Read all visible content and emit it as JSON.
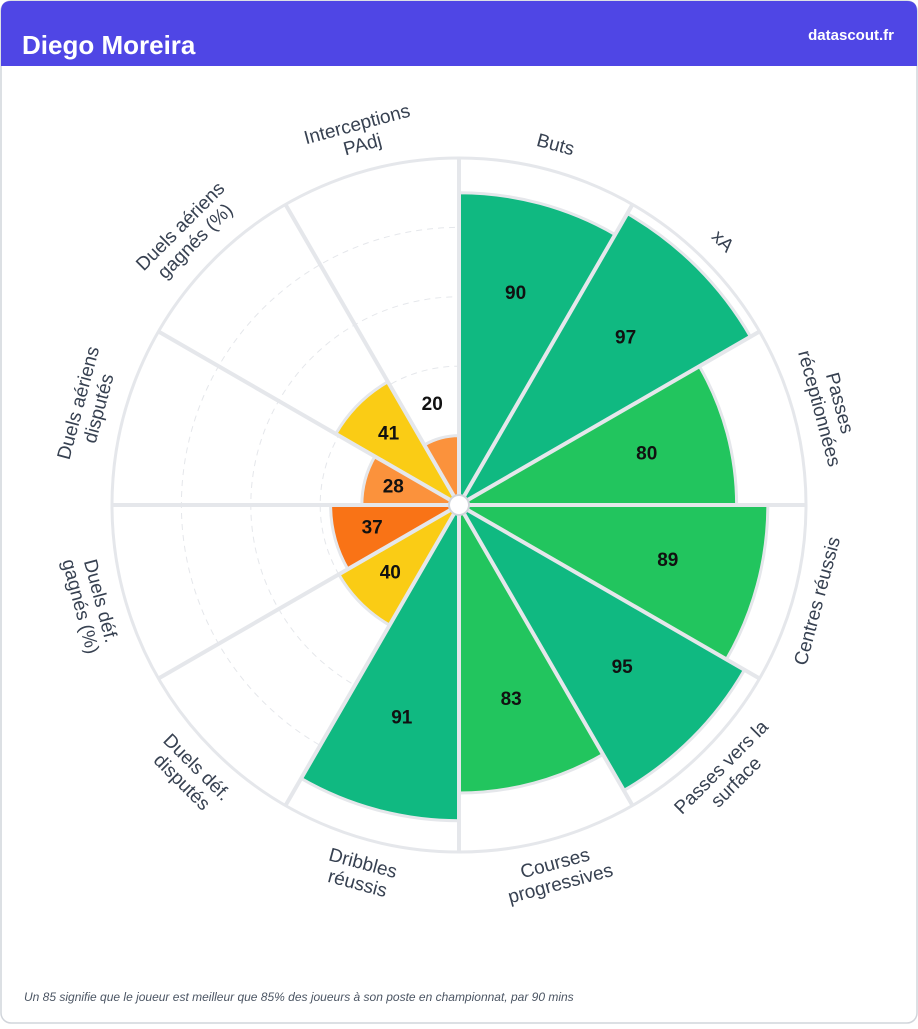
{
  "chart_data": {
    "type": "pizza",
    "title": "Diego Moreira",
    "source": "datascout.fr",
    "footnote": "Un 85 signifie que le joueur est meilleur que 85% des joueurs à son poste en championnat, par 90 mins",
    "categories": [
      [
        "Buts"
      ],
      [
        "xA"
      ],
      [
        "Passes",
        "réceptionnées"
      ],
      [
        "Centres réussis"
      ],
      [
        "Passes vers la",
        "surface"
      ],
      [
        "Courses",
        "progressives"
      ],
      [
        "Dribbles",
        "réussis"
      ],
      [
        "Duels déf.",
        "disputés"
      ],
      [
        "Duels déf.",
        "gagnés (%)"
      ],
      [
        "Duels aériens",
        "disputés"
      ],
      [
        "Duels aériens",
        "gagnés (%)"
      ],
      [
        "Interceptions",
        "PAdj"
      ]
    ],
    "values": [
      90,
      97,
      80,
      89,
      95,
      83,
      91,
      40,
      37,
      28,
      41,
      20
    ],
    "colors": [
      "#10b981",
      "#10b981",
      "#22c55e",
      "#22c55e",
      "#10b981",
      "#22c55e",
      "#10b981",
      "#facc15",
      "#f97316",
      "#fb923c",
      "#facc15",
      "#fb923c"
    ],
    "rlim": [
      0,
      100
    ],
    "rticks": [
      20,
      40,
      60,
      80
    ],
    "grid": true
  }
}
